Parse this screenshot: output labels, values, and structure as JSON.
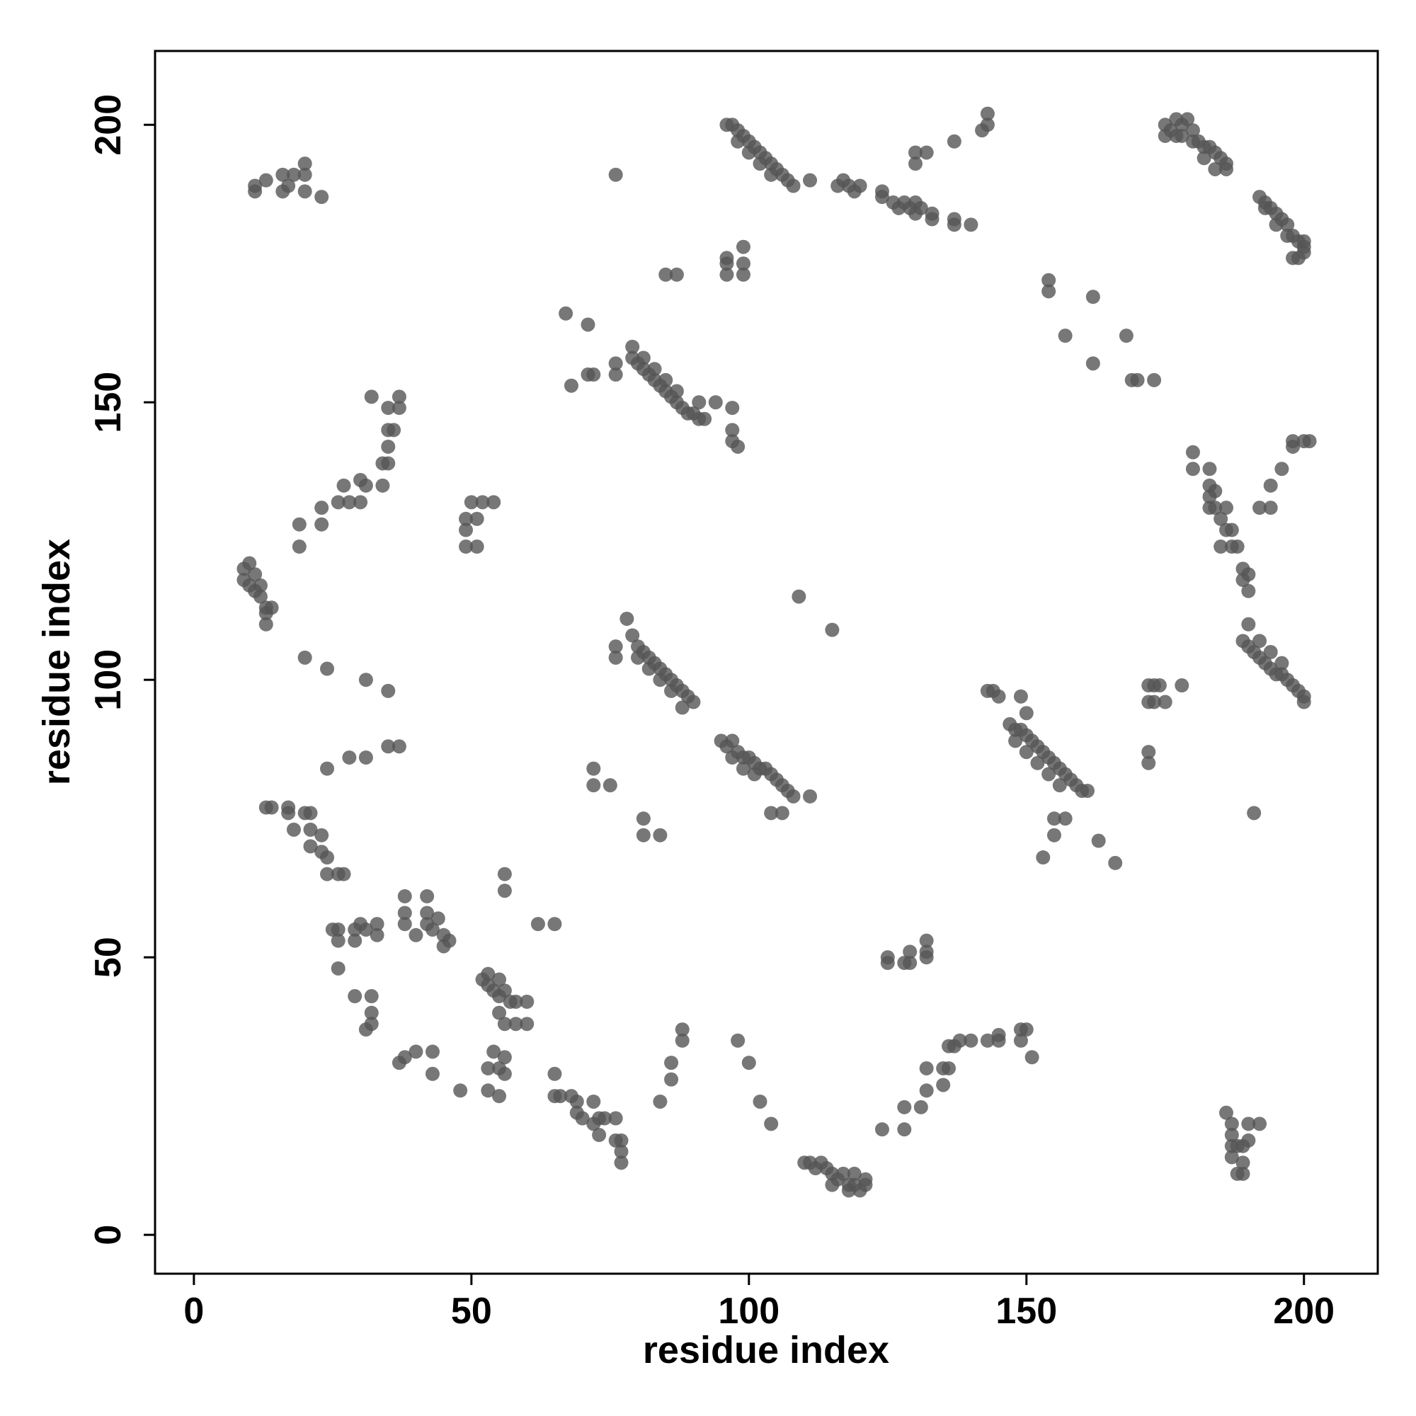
{
  "chart_data": {
    "type": "scatter",
    "xlabel": "residue index",
    "ylabel": "residue index",
    "xlim": [
      -7,
      213.3
    ],
    "ylim": [
      -7,
      213.3
    ],
    "xticks": [
      0,
      50,
      100,
      150,
      200
    ],
    "yticks": [
      0,
      50,
      100,
      150,
      200
    ],
    "series": [
      {
        "color": "#555555",
        "x": [
          11,
          11,
          13,
          16,
          16,
          17,
          18,
          20,
          20,
          20,
          23,
          9,
          9,
          10,
          10,
          11,
          11,
          12,
          12,
          13,
          13,
          14,
          13,
          19,
          19,
          23,
          23,
          26,
          27,
          28,
          30,
          30,
          31,
          34,
          34,
          35,
          35,
          35,
          36,
          35,
          37,
          37,
          32,
          49,
          49,
          49,
          50,
          51,
          52,
          54,
          51,
          13,
          14,
          17,
          17,
          18,
          20,
          21,
          21,
          21,
          23,
          23,
          24,
          24,
          26,
          27,
          25,
          26,
          26,
          29,
          29,
          30,
          31,
          33,
          33,
          26,
          20,
          24,
          31,
          35,
          35,
          37,
          24,
          28,
          31,
          38,
          38,
          38,
          40,
          42,
          42,
          42,
          43,
          44,
          45,
          46,
          45,
          52,
          53,
          53,
          54,
          55,
          55,
          56,
          57,
          58,
          56,
          56,
          62,
          65,
          29,
          32,
          32,
          31,
          32,
          37,
          38,
          40,
          43,
          43,
          48,
          53,
          53,
          54,
          55,
          55,
          56,
          56,
          56,
          58,
          55,
          60,
          60,
          65,
          65,
          66,
          68,
          69,
          69,
          70,
          72,
          72,
          73,
          73,
          74,
          76,
          76,
          77,
          77,
          77,
          84,
          86,
          86,
          88,
          88,
          98,
          100,
          102,
          104,
          110,
          111,
          112,
          113,
          114,
          115,
          115,
          116,
          117,
          118,
          118,
          119,
          119,
          120,
          121,
          121,
          124,
          128,
          128,
          131,
          132,
          132,
          135,
          135,
          136,
          136,
          137,
          138,
          140,
          143,
          145,
          145,
          149,
          150,
          151,
          149,
          125,
          125,
          128,
          129,
          129,
          132,
          132,
          132,
          186,
          187,
          187,
          187,
          187,
          188,
          188,
          189,
          189,
          189,
          190,
          190,
          192,
          78,
          76,
          76,
          79,
          80,
          81,
          82,
          83,
          84,
          85,
          86,
          87,
          88,
          89,
          90,
          88,
          80,
          82,
          84,
          86,
          95,
          96,
          97,
          98,
          99,
          100,
          101,
          102,
          103,
          104,
          105,
          106,
          107,
          108,
          111,
          104,
          106,
          97,
          99,
          101,
          72,
          72,
          75,
          81,
          81,
          84,
          143,
          144,
          145,
          149,
          150,
          147,
          148,
          149,
          150,
          151,
          152,
          153,
          154,
          155,
          156,
          157,
          158,
          159,
          160,
          161,
          148,
          150,
          152,
          154,
          156,
          153,
          155,
          155,
          157,
          163,
          166,
          172,
          173,
          174,
          172,
          173,
          175,
          178,
          172,
          172,
          190,
          189,
          190,
          191,
          192,
          193,
          194,
          195,
          196,
          197,
          198,
          199,
          200,
          200,
          192,
          194,
          196,
          191,
          180,
          180,
          183,
          183,
          183,
          184,
          183,
          184,
          185,
          186,
          186,
          187,
          185,
          187,
          188,
          189,
          189,
          190,
          190,
          192,
          194,
          194,
          196,
          198,
          198,
          200,
          201,
          175,
          175,
          176,
          177,
          178,
          178,
          179,
          180,
          181,
          182,
          183,
          184,
          185,
          186,
          184,
          186,
          180,
          182,
          177,
          192,
          193,
          194,
          195,
          196,
          197,
          198,
          199,
          200,
          200,
          199,
          198,
          193,
          195,
          197,
          200,
          96,
          97,
          98,
          99,
          100,
          101,
          102,
          103,
          104,
          105,
          106,
          107,
          108,
          111,
          98,
          100,
          102,
          104,
          116,
          117,
          118,
          119,
          120,
          124,
          124,
          126,
          127,
          128,
          129,
          130,
          130,
          131,
          133,
          133,
          137,
          140,
          137,
          130,
          130,
          132,
          137,
          142,
          143,
          143,
          96,
          96,
          96,
          99,
          99,
          99,
          85,
          87,
          79,
          79,
          80,
          81,
          82,
          83,
          84,
          85,
          86,
          87,
          88,
          89,
          90,
          91,
          92,
          91,
          94,
          97,
          97,
          97,
          98,
          81,
          83,
          85,
          87,
          67,
          71,
          71,
          72,
          76,
          76,
          68,
          76,
          109,
          115,
          154,
          154,
          157,
          162,
          162,
          168,
          169,
          170,
          173
        ],
        "y": [
          189,
          188,
          190,
          191,
          188,
          189,
          191,
          188,
          191,
          193,
          187,
          120,
          118,
          117,
          121,
          119,
          116,
          117,
          115,
          113,
          112,
          113,
          110,
          124,
          128,
          128,
          131,
          132,
          135,
          132,
          136,
          132,
          135,
          135,
          139,
          139,
          142,
          145,
          145,
          149,
          149,
          151,
          151,
          124,
          127,
          129,
          132,
          129,
          132,
          132,
          124,
          77,
          77,
          77,
          76,
          73,
          76,
          76,
          73,
          70,
          72,
          69,
          68,
          65,
          65,
          65,
          55,
          55,
          53,
          55,
          53,
          56,
          55,
          56,
          54,
          48,
          104,
          102,
          100,
          98,
          88,
          88,
          84,
          86,
          86,
          61,
          58,
          56,
          54,
          61,
          58,
          56,
          55,
          57,
          54,
          53,
          52,
          46,
          45,
          47,
          44,
          46,
          43,
          44,
          42,
          42,
          62,
          65,
          56,
          56,
          43,
          43,
          40,
          37,
          38,
          31,
          32,
          33,
          33,
          29,
          26,
          26,
          30,
          33,
          30,
          25,
          29,
          32,
          38,
          38,
          40,
          42,
          38,
          29,
          25,
          25,
          25,
          24,
          22,
          21,
          20,
          24,
          21,
          18,
          21,
          21,
          17,
          17,
          15,
          13,
          24,
          28,
          31,
          35,
          37,
          35,
          31,
          24,
          20,
          13,
          13,
          12,
          13,
          12,
          11,
          9,
          10,
          11,
          9,
          8,
          11,
          9,
          8,
          9,
          10,
          19,
          19,
          23,
          23,
          26,
          30,
          27,
          30,
          30,
          34,
          34,
          35,
          35,
          35,
          35,
          36,
          37,
          37,
          32,
          35,
          49,
          50,
          49,
          51,
          49,
          50,
          53,
          51,
          22,
          20,
          18,
          16,
          14,
          16,
          11,
          16,
          13,
          11,
          17,
          20,
          20,
          111,
          104,
          106,
          108,
          106,
          105,
          104,
          103,
          102,
          101,
          100,
          99,
          98,
          97,
          96,
          95,
          104,
          102,
          100,
          98,
          89,
          88,
          89,
          87,
          86,
          86,
          85,
          84,
          84,
          83,
          82,
          81,
          80,
          79,
          79,
          76,
          76,
          86,
          84,
          83,
          84,
          81,
          81,
          75,
          72,
          72,
          98,
          98,
          97,
          97,
          94,
          92,
          91,
          91,
          90,
          89,
          88,
          87,
          86,
          85,
          84,
          83,
          82,
          81,
          80,
          80,
          89,
          87,
          85,
          83,
          81,
          68,
          72,
          75,
          75,
          71,
          67,
          99,
          99,
          99,
          96,
          96,
          96,
          99,
          87,
          85,
          110,
          107,
          106,
          105,
          104,
          103,
          102,
          101,
          101,
          100,
          99,
          98,
          97,
          96,
          107,
          105,
          103,
          76,
          141,
          138,
          138,
          135,
          133,
          134,
          131,
          131,
          129,
          131,
          127,
          127,
          124,
          124,
          124,
          120,
          118,
          116,
          119,
          131,
          131,
          135,
          138,
          142,
          143,
          143,
          143,
          200,
          198,
          199,
          201,
          200,
          198,
          201,
          199,
          197,
          196,
          196,
          195,
          194,
          193,
          192,
          192,
          197,
          194,
          198,
          187,
          186,
          185,
          184,
          183,
          182,
          180,
          179,
          178,
          177,
          176,
          176,
          185,
          182,
          180,
          179,
          200,
          200,
          199,
          198,
          197,
          196,
          195,
          194,
          193,
          192,
          191,
          190,
          189,
          190,
          197,
          195,
          193,
          191,
          189,
          190,
          189,
          188,
          189,
          187,
          188,
          186,
          185,
          186,
          185,
          184,
          186,
          185,
          183,
          184,
          183,
          182,
          182,
          193,
          195,
          195,
          197,
          199,
          200,
          202,
          173,
          175,
          176,
          173,
          175,
          178,
          173,
          173,
          160,
          158,
          157,
          156,
          155,
          154,
          153,
          152,
          151,
          150,
          149,
          148,
          148,
          147,
          147,
          150,
          150,
          149,
          145,
          143,
          142,
          158,
          156,
          154,
          152,
          166,
          164,
          155,
          155,
          157,
          155,
          153,
          191,
          115,
          109,
          170,
          172,
          162,
          169,
          157,
          162,
          154,
          154,
          154
        ]
      }
    ]
  }
}
